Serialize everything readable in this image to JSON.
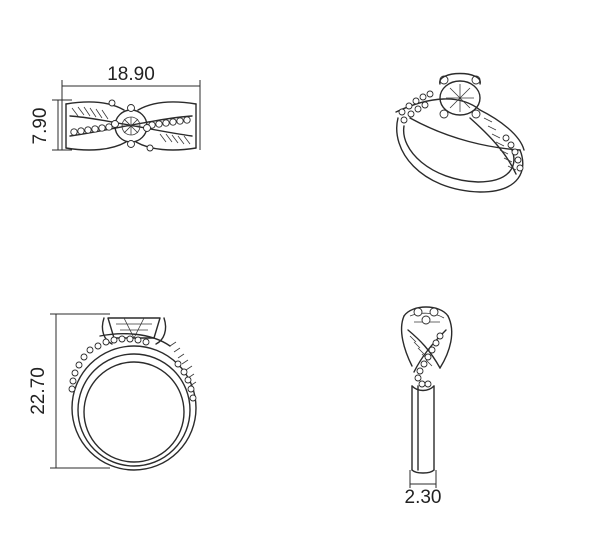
{
  "dimensions": {
    "width": "18.90",
    "height": "7.90",
    "total_height": "22.70",
    "band_width": "2.30"
  }
}
